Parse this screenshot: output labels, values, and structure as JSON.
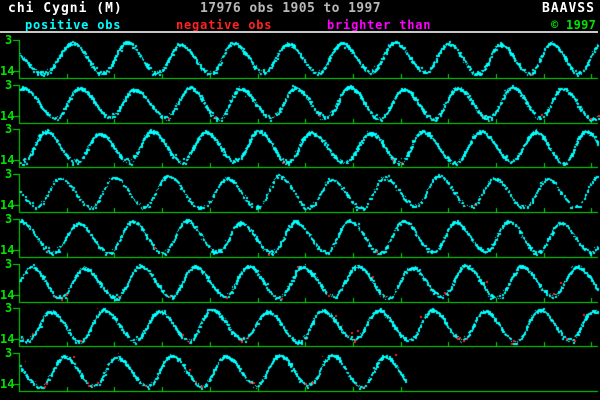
{
  "header": {
    "title": "chi Cygni (M)",
    "obs_summary": "17976 obs 1905 to 1997",
    "org": "BAAVSS"
  },
  "legend": {
    "items": [
      {
        "label": "positive obs",
        "color": "#00ffff"
      },
      {
        "label": "negative obs",
        "color": "#ff2222"
      },
      {
        "label": "brighter than",
        "color": "#ff00ff"
      },
      {
        "label": "© 1997",
        "color": "#00e400"
      }
    ]
  },
  "palette": {
    "background": "#000000",
    "title": "#ffffff",
    "subtitle": "#b8b8b8",
    "separator": "#c8c8c8",
    "axis": "#00e400"
  },
  "chart_data": {
    "type": "scatter",
    "title": "chi Cygni (M)",
    "subtitle": "17976 obs 1905 to 1997",
    "total_observations": 17976,
    "x_range_years": [
      1905,
      1997
    ],
    "rows": 8,
    "row_span_years": 12,
    "x_axis": {
      "tick_interval_years": 1,
      "ticks_per_row": 12,
      "grid": false
    },
    "y_axis": {
      "top": "3",
      "bottom": "14",
      "unit": "magnitude",
      "inverted": true,
      "ylim": [
        3,
        14
      ]
    },
    "period_days": 408,
    "legend_position": "top",
    "series": [
      {
        "name": "positive obs",
        "color": "#00ffff"
      },
      {
        "name": "negative obs",
        "color": "#ff2222"
      },
      {
        "name": "brighter than",
        "color": "#ff00ff"
      }
    ],
    "colors": {
      "positive": "#00ffff",
      "negative": "#ff2222",
      "brighter_than": "#ff00ff",
      "axis": "#00e400"
    },
    "panels": [
      {
        "start_year": 1905,
        "pre": [
          5,
          4.5
        ],
        "density": 2.3,
        "neg_rate": 0.02,
        "stray_red": 0,
        "peaks": [
          [
            72,
            3.9
          ],
          [
            126,
            3.6
          ],
          [
            180,
            4.4
          ],
          [
            233,
            3.9
          ],
          [
            287,
            4.1
          ],
          [
            341,
            3.9
          ],
          [
            394,
            3.6
          ],
          [
            448,
            4.0
          ],
          [
            500,
            4.3
          ],
          [
            551,
            4.0
          ],
          [
            600,
            4.3
          ]
        ]
      },
      {
        "start_year": 1917,
        "pre": [
          -30,
          4.0
        ],
        "density": 2.3,
        "neg_rate": 0.06,
        "stray_red": 0,
        "peaks": [
          [
            23,
            3.7
          ],
          [
            79,
            3.9
          ],
          [
            134,
            4.3
          ],
          [
            190,
            3.7
          ],
          [
            240,
            4.1
          ],
          [
            295,
            3.8
          ],
          [
            349,
            3.6
          ],
          [
            403,
            4.2
          ],
          [
            457,
            3.9
          ],
          [
            512,
            3.6
          ],
          [
            562,
            4.0
          ]
        ]
      },
      {
        "start_year": 1929,
        "pre": [
          -8,
          4.0
        ],
        "density": 2.5,
        "neg_rate": 0.04,
        "stray_red": 0,
        "peaks": [
          [
            45,
            3.7
          ],
          [
            99,
            4.3
          ],
          [
            151,
            3.6
          ],
          [
            205,
            3.9
          ],
          [
            258,
            3.7
          ],
          [
            310,
            4.0
          ],
          [
            370,
            4.2
          ],
          [
            422,
            3.8
          ],
          [
            480,
            3.6
          ],
          [
            535,
            3.9
          ],
          [
            585,
            3.7
          ]
        ]
      },
      {
        "start_year": 1941,
        "pre": [
          6,
          4.6
        ],
        "density": 1.1,
        "neg_rate": 0.03,
        "stray_red": 0,
        "peaks": [
          [
            60,
            4.2
          ],
          [
            114,
            3.9
          ],
          [
            167,
            3.6
          ],
          [
            227,
            4.4
          ],
          [
            279,
            3.4
          ],
          [
            331,
            4.6
          ],
          [
            384,
            4.1
          ],
          [
            438,
            3.5
          ],
          [
            494,
            4.3
          ],
          [
            547,
            4.5
          ],
          [
            597,
            3.9
          ]
        ]
      },
      {
        "start_year": 1953,
        "pre": [
          -34,
          4.2
        ],
        "density": 1.8,
        "neg_rate": 0.04,
        "stray_red": 0,
        "peaks": [
          [
            20,
            3.6
          ],
          [
            78,
            4.4
          ],
          [
            132,
            3.7
          ],
          [
            186,
            3.5
          ],
          [
            240,
            4.1
          ],
          [
            295,
            3.8
          ],
          [
            349,
            3.4
          ],
          [
            403,
            3.5
          ],
          [
            455,
            3.9
          ],
          [
            508,
            3.7
          ],
          [
            560,
            4.2
          ]
        ]
      },
      {
        "start_year": 1965,
        "pre": [
          -22,
          4.1
        ],
        "density": 2.0,
        "neg_rate": 0.1,
        "stray_red": 0.004,
        "peaks": [
          [
            31,
            3.8
          ],
          [
            83,
            4.2
          ],
          [
            140,
            3.5
          ],
          [
            194,
            3.7
          ],
          [
            248,
            3.6
          ],
          [
            302,
            3.8
          ],
          [
            357,
            3.5
          ],
          [
            411,
            4.0
          ],
          [
            465,
            3.4
          ],
          [
            521,
            3.7
          ],
          [
            577,
            3.8
          ]
        ]
      },
      {
        "start_year": 1977,
        "pre": [
          -4,
          4.2
        ],
        "density": 2.2,
        "neg_rate": 0.22,
        "stray_red": 0.006,
        "peaks": [
          [
            50,
            4.0
          ],
          [
            103,
            3.5
          ],
          [
            159,
            3.8
          ],
          [
            211,
            3.4
          ],
          [
            267,
            4.1
          ],
          [
            322,
            3.7
          ],
          [
            378,
            3.6
          ],
          [
            432,
            3.5
          ],
          [
            484,
            3.9
          ],
          [
            539,
            3.4
          ],
          [
            593,
            3.8
          ]
        ]
      },
      {
        "start_year": 1989,
        "end_x": 406,
        "pre": [
          8,
          4.3
        ],
        "density": 2.0,
        "neg_rate": 0.18,
        "stray_red": 0.005,
        "peaks": [
          [
            64,
            4.1
          ],
          [
            116,
            4.4
          ],
          [
            171,
            3.6
          ],
          [
            225,
            3.9
          ],
          [
            279,
            3.7
          ],
          [
            331,
            3.5
          ],
          [
            384,
            4.0
          ]
        ]
      }
    ]
  }
}
